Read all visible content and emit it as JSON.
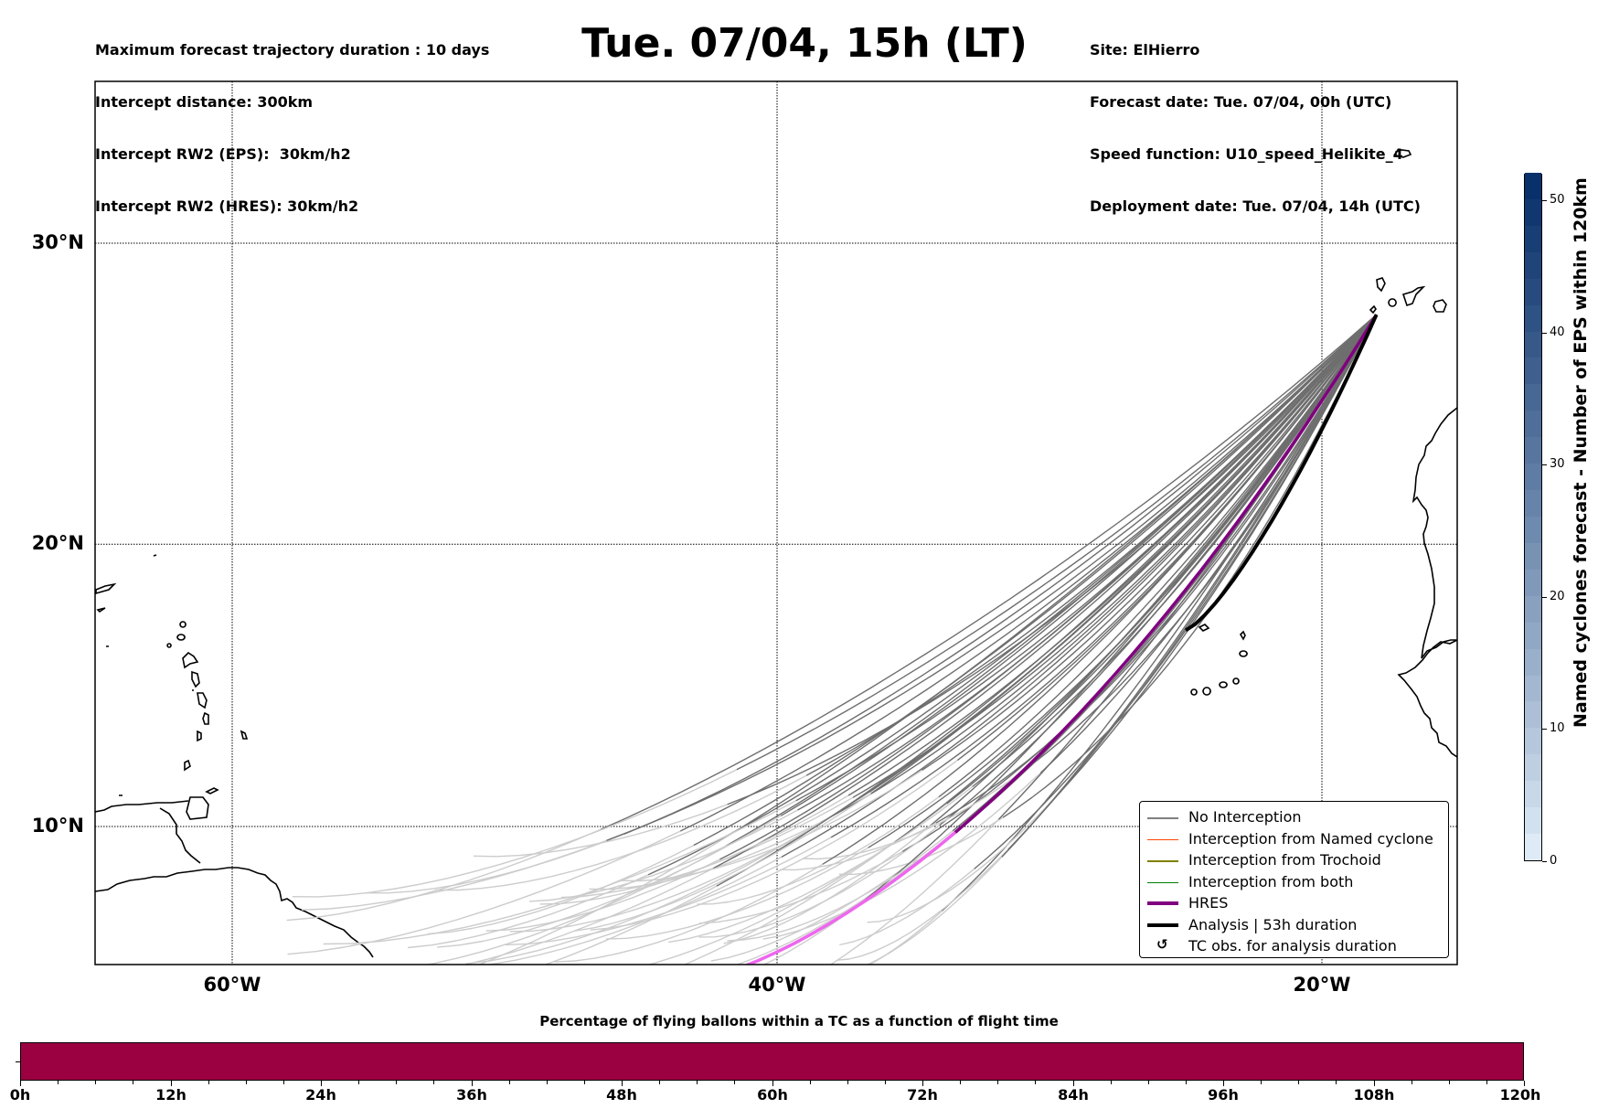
{
  "header": {
    "left_lines": [
      "Maximum forecast trajectory duration : 10 days",
      "Intercept distance: 300km",
      "Intercept RW2 (EPS):  30km/h2",
      "Intercept RW2 (HRES): 30km/h2"
    ],
    "title": "Tue. 07/04, 15h (LT)",
    "right_lines": [
      "Site: ElHierro",
      "Forecast date: Tue. 07/04, 00h (UTC)",
      "Speed function: U10_speed_Helikite_4",
      "Deployment date: Tue. 07/04, 14h (UTC)"
    ]
  },
  "map": {
    "lat_labels": [
      "30°N",
      "20°N",
      "10°N"
    ],
    "lat_values": [
      30,
      20,
      10
    ],
    "lon_labels": [
      "60°W",
      "40°W",
      "20°W"
    ],
    "lon_values": [
      -60,
      -40,
      -20
    ],
    "extent": {
      "lon_min": -65,
      "lon_max": -15,
      "lat_min": 5.2,
      "lat_max": 35.4
    },
    "origin_site": {
      "name": "ElHierro",
      "lon": -18.0,
      "lat": 27.7
    }
  },
  "legend": {
    "items": [
      {
        "label": "No Interception",
        "color": "#808080",
        "style": "thin"
      },
      {
        "label": "Interception from Named cyclone",
        "color": "#ff4500",
        "style": "thin"
      },
      {
        "label": "Interception from Trochoid",
        "color": "#808000",
        "style": "thin"
      },
      {
        "label": "Interception from both",
        "color": "#008000",
        "style": "thin"
      },
      {
        "label": "HRES",
        "color": "#800080",
        "style": "thick"
      },
      {
        "label": "Analysis | 53h duration",
        "color": "#000000",
        "style": "thick"
      },
      {
        "label": "TC obs. for analysis duration",
        "color": "#000000",
        "style": "glyph",
        "glyph": "↺"
      }
    ]
  },
  "colorbar": {
    "label": "Named cyclones forecast - Number of EPS within 120km",
    "min": 0,
    "max": 52,
    "ticks": [
      "0",
      "10",
      "20",
      "30",
      "40",
      "50"
    ],
    "tick_values": [
      0,
      10,
      20,
      30,
      40,
      50
    ],
    "color_low": "#deebf7",
    "color_high": "#08306b"
  },
  "timeline": {
    "title": "Percentage of flying ballons within a TC as a function of flight time",
    "tick_labels": [
      "0h",
      "12h",
      "24h",
      "36h",
      "48h",
      "60h",
      "72h",
      "84h",
      "96h",
      "108h",
      "120h"
    ],
    "tick_values": [
      0,
      12,
      24,
      36,
      48,
      60,
      72,
      84,
      96,
      108,
      120
    ],
    "max_hours": 120,
    "minor_step_hours": 3,
    "bar_color": "#9b0040"
  },
  "colors": {
    "eps_dark": "#6e6e6e",
    "eps_light": "#cccccc",
    "hres": "#800080",
    "hres_late": "#ee66ee",
    "analysis": "#000000"
  }
}
